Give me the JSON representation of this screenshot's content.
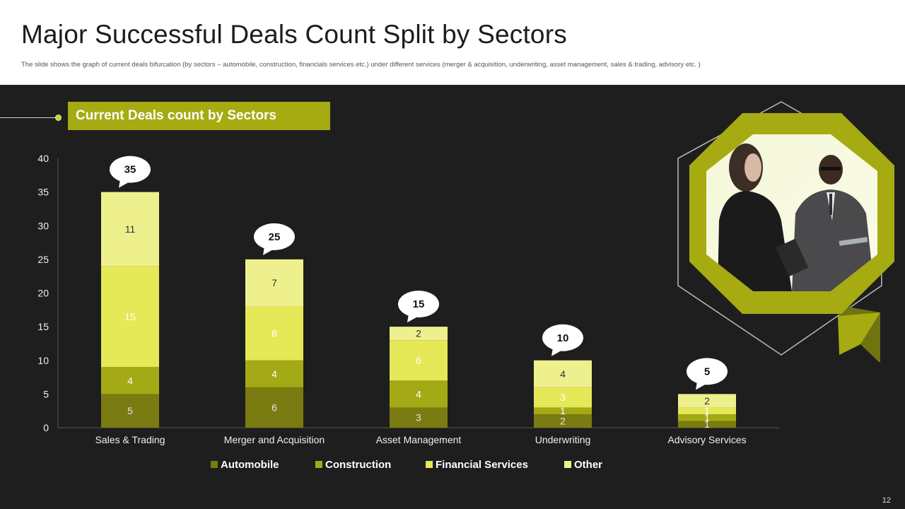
{
  "slide": {
    "title": "Major Successful Deals Count Split by Sectors",
    "subtitle": "The slide shows the graph of current deals bifurcation (by sectors – automobile,  construction, financials services etc.) under different services (merger & acquisition, underwriting, asset management,  sales &  trading, advisory etc. )",
    "section_label": "Current Deals count by Sectors",
    "page_number": "12"
  },
  "colors": {
    "panel_bg": "#1e1e1e",
    "accent": "#a5ab11",
    "automobile": "#7a7b10",
    "construction": "#a4aa15",
    "financial_services": "#e5e857",
    "other": "#eef08e"
  },
  "chart_data": {
    "type": "bar",
    "stacked": true,
    "title": "Current Deals count by Sectors",
    "categories": [
      "Sales & Trading",
      "Merger and Acquisition",
      "Asset Management",
      "Underwriting",
      "Advisory Services"
    ],
    "series": [
      {
        "name": "Automobile",
        "values": [
          5,
          6,
          3,
          2,
          1
        ]
      },
      {
        "name": "Construction",
        "values": [
          4,
          4,
          4,
          1,
          1
        ]
      },
      {
        "name": "Financial Services",
        "values": [
          15,
          8,
          6,
          3,
          1
        ]
      },
      {
        "name": "Other",
        "values": [
          11,
          7,
          2,
          4,
          2
        ]
      }
    ],
    "totals": [
      35,
      25,
      15,
      10,
      5
    ],
    "ylim": [
      0,
      40
    ],
    "yticks": [
      0,
      5,
      10,
      15,
      20,
      25,
      30,
      35,
      40
    ],
    "xlabel": "",
    "ylabel": "",
    "legend": "bottom",
    "grid": false
  }
}
